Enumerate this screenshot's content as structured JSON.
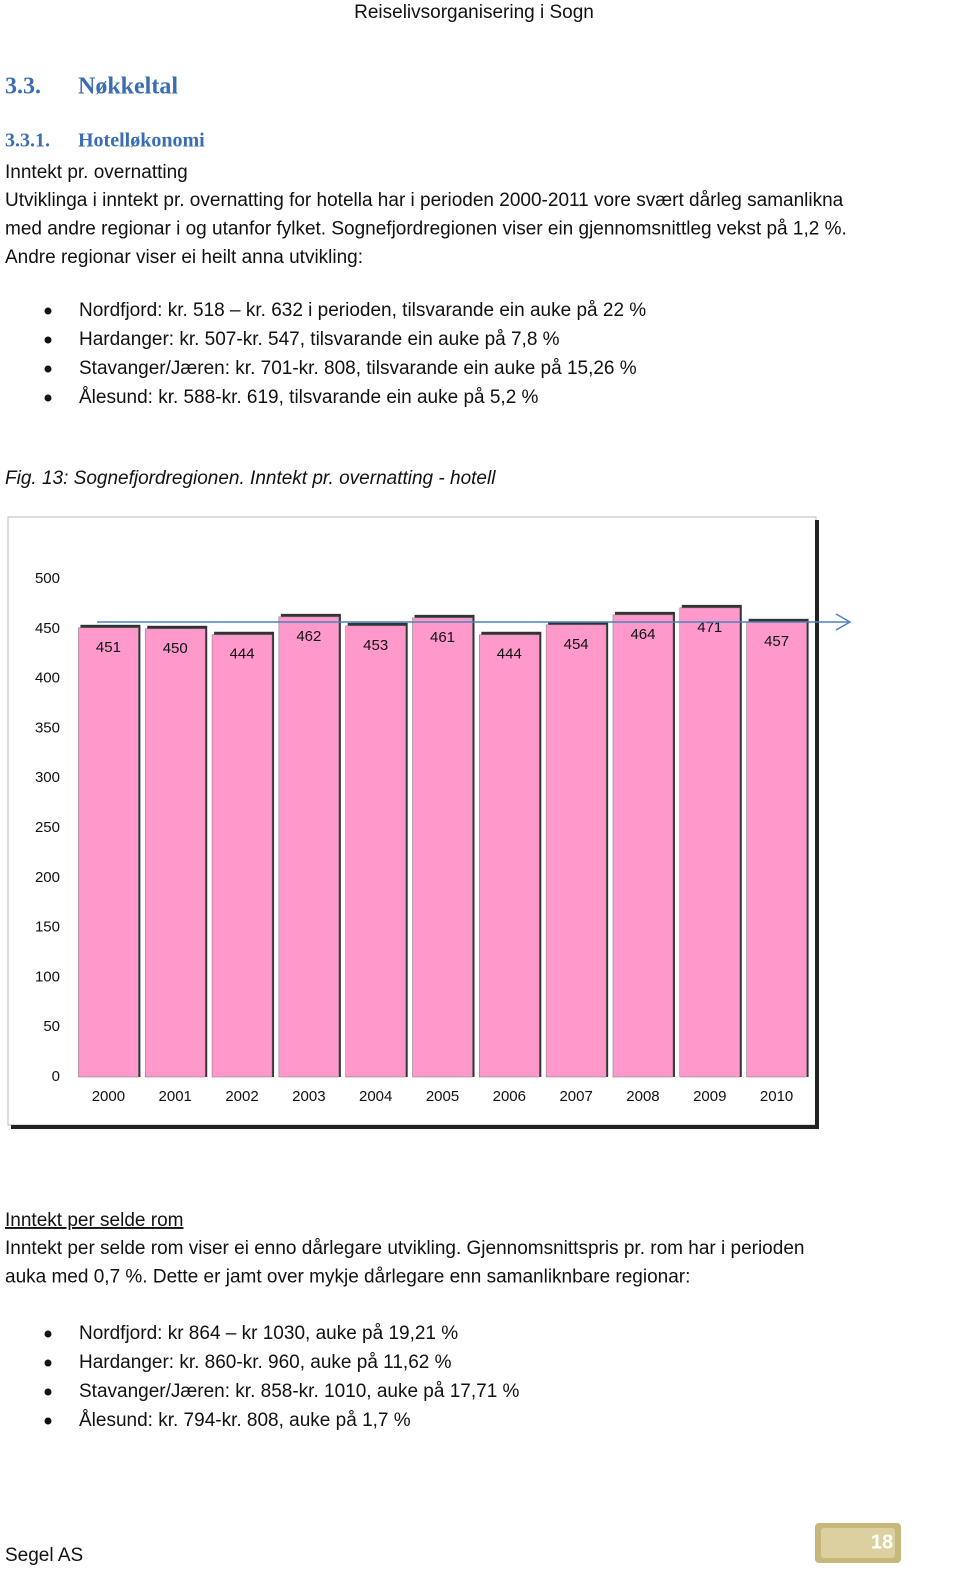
{
  "header": {
    "title": "Reiselivsorganisering i Sogn"
  },
  "section": {
    "number": "3.3.",
    "title": "Nøkkeltal"
  },
  "subsection": {
    "number": "3.3.1.",
    "title": "Hotelløkonomi"
  },
  "intro": {
    "heading": "Inntekt pr. overnatting",
    "lines": [
      "Utviklinga i inntekt pr. overnatting for hotella har i perioden 2000-2011 vore svært dårleg samanlikna",
      "med andre regionar i og utanfor fylket. Sognefjordregionen viser ein gjennomsnittleg vekst på 1,2 %.",
      "Andre regionar viser ei heilt anna utvikling:"
    ],
    "bullets": [
      "Nordfjord: kr. 518 – kr. 632 i perioden,  tilsvarande ein auke på 22 %",
      "Hardanger: kr. 507-kr. 547, tilsvarande ein auke på  7,8 %",
      "Stavanger/Jæren: kr. 701-kr. 808, tilsvarande ein auke på 15,26 %",
      "Ålesund: kr. 588-kr. 619, tilsvarande ein auke på 5,2 %"
    ]
  },
  "figure_caption": "Fig. 13: Sognefjordregionen. Inntekt pr. overnatting - hotell",
  "chart_data": {
    "type": "bar",
    "categories": [
      "2000",
      "2001",
      "2002",
      "2003",
      "2004",
      "2005",
      "2006",
      "2007",
      "2008",
      "2009",
      "2010"
    ],
    "values": [
      451,
      450,
      444,
      462,
      453,
      461,
      444,
      454,
      464,
      471,
      457
    ],
    "color": "#ff99cc",
    "ylim": [
      0,
      500
    ],
    "yticks": [
      0,
      50,
      100,
      150,
      200,
      250,
      300,
      350,
      400,
      450,
      500
    ]
  },
  "rooms": {
    "heading": "Inntekt per selde rom",
    "lines": [
      "Inntekt per selde rom viser ei enno dårlegare utvikling. Gjennomsnittspris pr. rom har i perioden",
      "auka med 0,7 %. Dette er jamt over mykje dårlegare enn samanliknbare regionar:"
    ],
    "bullets": [
      "Nordfjord: kr 864 – kr 1030, auke på  19,21 %",
      "Hardanger: kr.  860-kr. 960, auke på 11,62 %",
      "Stavanger/Jæren: kr.  858-kr. 1010, auke på 17,71 %",
      "Ålesund: kr.  794-kr. 808, auke på 1,7 %"
    ]
  },
  "footer": {
    "company": "Segel AS",
    "page": "18"
  }
}
